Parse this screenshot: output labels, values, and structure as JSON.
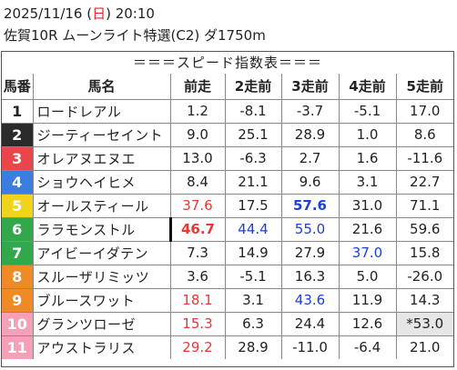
{
  "header": {
    "date_prefix": "2025/11/16 (",
    "day": "日",
    "date_suffix": ") 20:10",
    "race": "佐賀10R ムーンライト特選(C2) ダ1750m"
  },
  "table": {
    "title": "＝＝＝スピード指数表＝＝＝",
    "columns": [
      "馬番",
      "馬名",
      "前走",
      "2走前",
      "3走前",
      "4走前",
      "5走前"
    ],
    "frame_colors": {
      "1": {
        "bg": "#ffffff",
        "fg": "#222222"
      },
      "2": {
        "bg": "#2b2b2b",
        "fg": "#ffffff"
      },
      "3": {
        "bg": "#e8464b",
        "fg": "#ffffff"
      },
      "4": {
        "bg": "#3c7ee0",
        "fg": "#ffffff"
      },
      "5": {
        "bg": "#f2d31b",
        "fg": "#ffffff"
      },
      "6": {
        "bg": "#31a84a",
        "fg": "#ffffff"
      },
      "7": {
        "bg": "#f08a24",
        "fg": "#ffffff"
      },
      "8": {
        "bg": "#f5a0b6",
        "fg": "#ffffff"
      }
    },
    "rows": [
      {
        "no": "1",
        "frame": "1",
        "name": "ロードレアル",
        "cells": [
          {
            "v": "1.2"
          },
          {
            "v": "-8.1"
          },
          {
            "v": "-3.7"
          },
          {
            "v": "-5.1"
          },
          {
            "v": "17.0"
          }
        ]
      },
      {
        "no": "2",
        "frame": "2",
        "name": "ジーティーセイント",
        "cells": [
          {
            "v": "9.0"
          },
          {
            "v": "25.1"
          },
          {
            "v": "28.9"
          },
          {
            "v": "1.0"
          },
          {
            "v": "8.6"
          }
        ]
      },
      {
        "no": "3",
        "frame": "3",
        "name": "オレアヌエヌエ",
        "cells": [
          {
            "v": "13.0"
          },
          {
            "v": "-6.3"
          },
          {
            "v": "2.7"
          },
          {
            "v": "1.6"
          },
          {
            "v": "-11.6"
          }
        ]
      },
      {
        "no": "4",
        "frame": "4",
        "name": "ショウヘイヒメ",
        "cells": [
          {
            "v": "8.4"
          },
          {
            "v": "21.1"
          },
          {
            "v": "9.6"
          },
          {
            "v": "3.1"
          },
          {
            "v": "22.7"
          }
        ]
      },
      {
        "no": "5",
        "frame": "5",
        "name": "オールスティール",
        "cells": [
          {
            "v": "37.6",
            "c": "red"
          },
          {
            "v": "17.5"
          },
          {
            "v": "57.6",
            "c": "blue",
            "b": true
          },
          {
            "v": "31.0"
          },
          {
            "v": "71.1"
          }
        ]
      },
      {
        "no": "6",
        "frame": "6",
        "name": "ララモンストル",
        "cells": [
          {
            "v": "46.7",
            "c": "red",
            "b": true,
            "m": true
          },
          {
            "v": "44.4",
            "c": "blue"
          },
          {
            "v": "55.0",
            "c": "blue"
          },
          {
            "v": "21.6"
          },
          {
            "v": "59.6"
          }
        ]
      },
      {
        "no": "7",
        "frame": "6",
        "name": "アイビーイダテン",
        "cells": [
          {
            "v": "7.3"
          },
          {
            "v": "14.9"
          },
          {
            "v": "27.9"
          },
          {
            "v": "37.0",
            "c": "blue"
          },
          {
            "v": "15.8"
          }
        ]
      },
      {
        "no": "8",
        "frame": "7",
        "name": "スルーザリミッツ",
        "cells": [
          {
            "v": "3.6"
          },
          {
            "v": "-5.1"
          },
          {
            "v": "16.3"
          },
          {
            "v": "5.0"
          },
          {
            "v": "-26.0"
          }
        ]
      },
      {
        "no": "9",
        "frame": "7",
        "name": "ブルースワット",
        "cells": [
          {
            "v": "18.1",
            "c": "red"
          },
          {
            "v": "3.1"
          },
          {
            "v": "43.6",
            "c": "blue"
          },
          {
            "v": "11.9"
          },
          {
            "v": "14.3"
          }
        ]
      },
      {
        "no": "10",
        "frame": "8",
        "name": "グランツローゼ",
        "cells": [
          {
            "v": "15.3",
            "c": "red"
          },
          {
            "v": "6.3"
          },
          {
            "v": "24.4"
          },
          {
            "v": "12.6"
          },
          {
            "v": "*53.0",
            "g": true
          }
        ]
      },
      {
        "no": "11",
        "frame": "8",
        "name": "アウストラリス",
        "cells": [
          {
            "v": "29.2",
            "c": "red"
          },
          {
            "v": "28.9"
          },
          {
            "v": "-11.0"
          },
          {
            "v": "-6.4"
          },
          {
            "v": "21.0"
          }
        ]
      }
    ]
  }
}
